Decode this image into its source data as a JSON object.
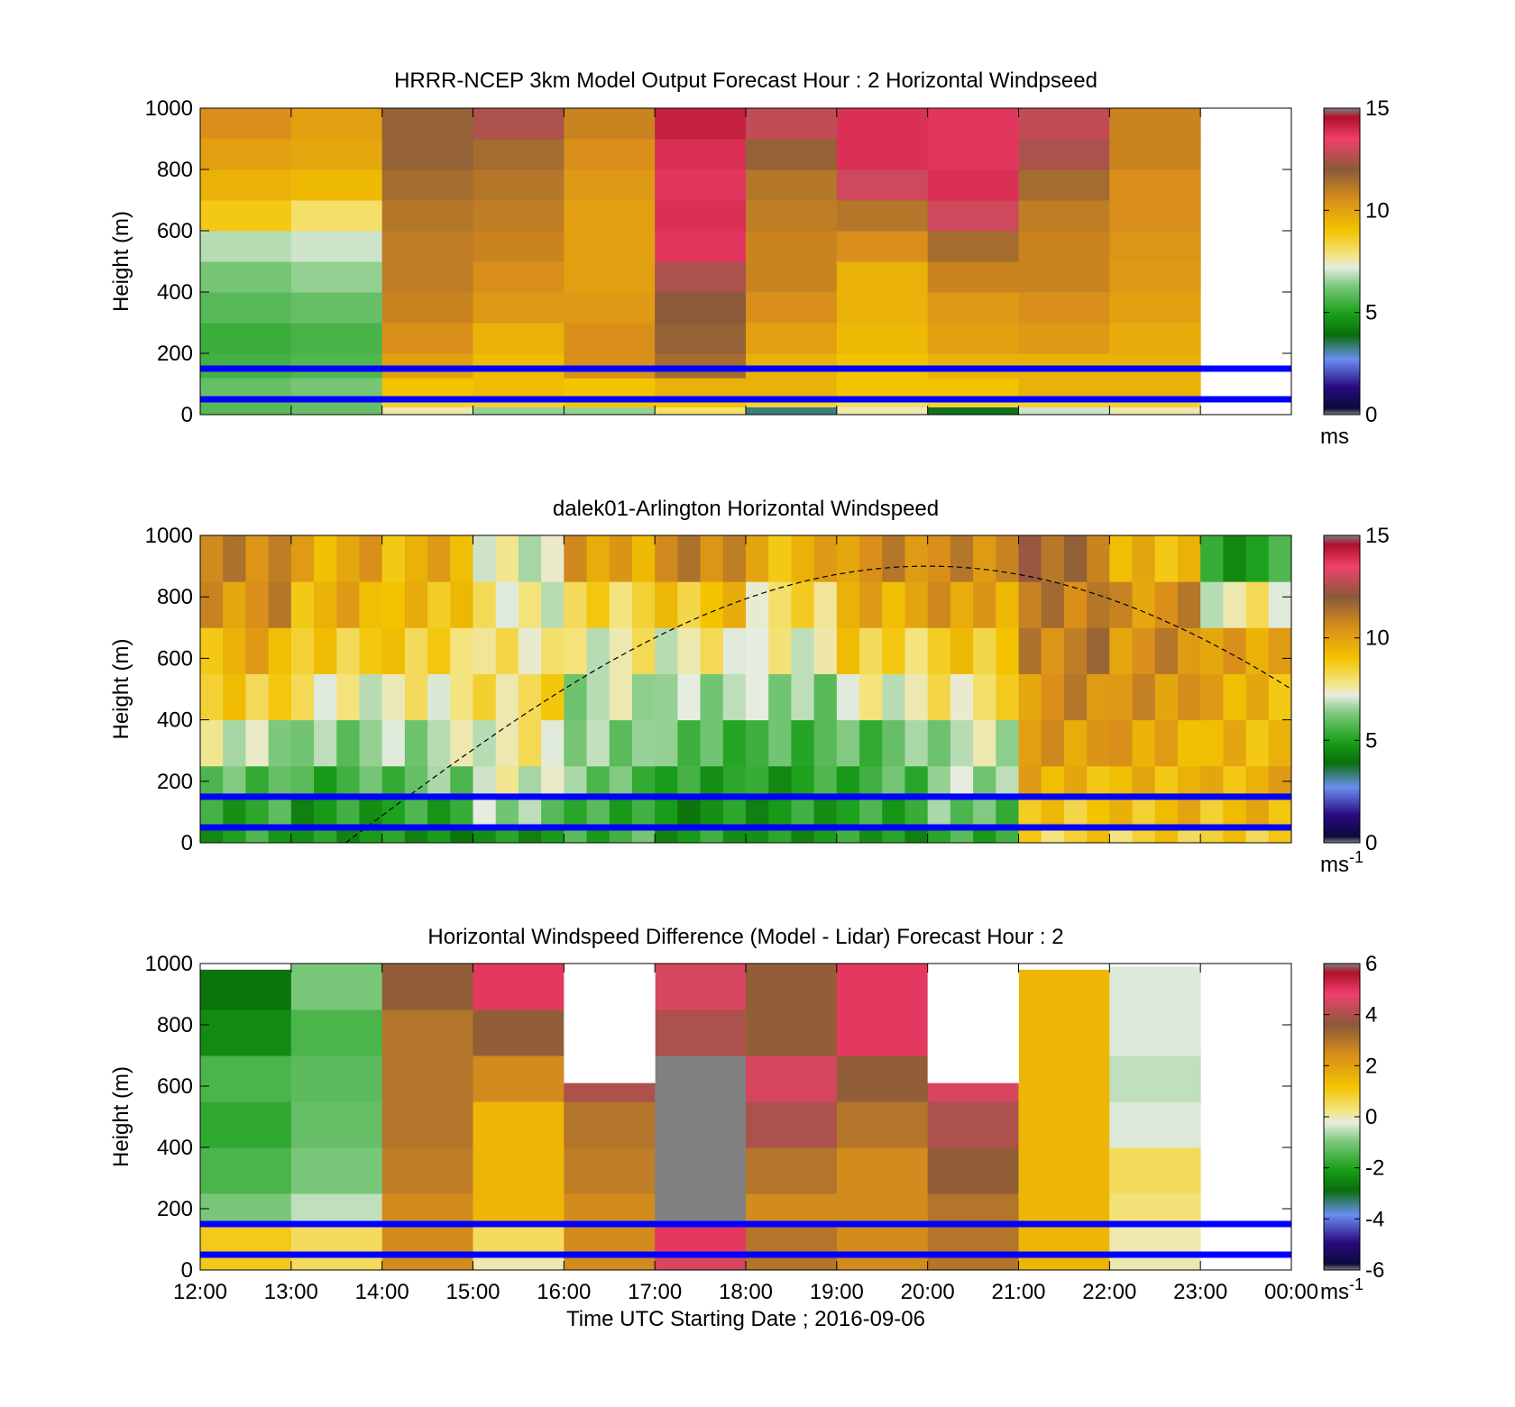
{
  "figure": {
    "xlabel": "Time UTC  Starting Date ; 2016-09-06",
    "x_ticks": [
      "12:00",
      "13:00",
      "14:00",
      "15:00",
      "16:00",
      "17:00",
      "18:00",
      "19:00",
      "20:00",
      "21:00",
      "22:00",
      "23:00",
      "00:00"
    ],
    "boundary_line_color": "#0000ff",
    "boundary_line_heights": [
      150,
      50
    ]
  },
  "chart_data": [
    {
      "type": "heatmap",
      "title": "HRRR-NCEP 3km Model Output   Forecast Hour : 2 Horizontal Windpseed",
      "ylabel": "Height (m)",
      "xlim": [
        12,
        24
      ],
      "ylim": [
        0,
        1000
      ],
      "y_ticks": [
        "0",
        "200",
        "400",
        "600",
        "800",
        "1000"
      ],
      "colorbar": {
        "ticks": [
          "0",
          "5",
          "10",
          "15"
        ],
        "range": [
          0,
          15
        ],
        "unit": "ms"
      },
      "hours": [
        12,
        13,
        14,
        15,
        16,
        17,
        18,
        19,
        20,
        21,
        22
      ],
      "heights": [
        10,
        40,
        90,
        150,
        250,
        350,
        450,
        550,
        650,
        750,
        850,
        950
      ],
      "values": [
        [
          5.8,
          6.0,
          7.5,
          6.5,
          6.5,
          8.0,
          3.0,
          7.5,
          3.5,
          7.0,
          7.5
        ],
        [
          5.8,
          6.0,
          8.5,
          8.5,
          9.0,
          9.0,
          8.5,
          8.0,
          8.5,
          8.5,
          8.5
        ],
        [
          6.0,
          6.2,
          9.0,
          9.2,
          9.0,
          9.5,
          9.5,
          9.0,
          9.0,
          9.5,
          9.5
        ],
        [
          5.5,
          5.7,
          10.0,
          9.2,
          10.5,
          11.5,
          9.5,
          9.0,
          9.5,
          9.5,
          9.5
        ],
        [
          5.4,
          5.6,
          10.5,
          9.5,
          10.5,
          11.8,
          10.0,
          9.3,
          10.0,
          10.2,
          9.7
        ],
        [
          5.8,
          6.0,
          10.8,
          10.2,
          10.2,
          12.0,
          10.5,
          9.5,
          10.2,
          10.5,
          10.0
        ],
        [
          6.2,
          6.5,
          11.0,
          10.5,
          10.0,
          12.5,
          10.8,
          9.5,
          10.8,
          10.8,
          10.2
        ],
        [
          6.8,
          7.0,
          11.0,
          10.8,
          10.0,
          13.8,
          10.8,
          10.5,
          11.5,
          10.8,
          10.3
        ],
        [
          8.8,
          8.0,
          11.2,
          11.0,
          10.0,
          14.0,
          11.0,
          11.2,
          13.0,
          11.0,
          10.5
        ],
        [
          9.5,
          9.3,
          11.5,
          11.2,
          10.2,
          13.8,
          11.2,
          13.0,
          14.0,
          11.5,
          10.5
        ],
        [
          10.0,
          9.8,
          11.8,
          11.5,
          10.5,
          14.0,
          11.8,
          14.0,
          13.8,
          12.5,
          10.8
        ],
        [
          10.5,
          10.0,
          11.8,
          12.5,
          10.8,
          14.5,
          12.8,
          14.0,
          13.8,
          12.8,
          10.8
        ]
      ]
    },
    {
      "type": "heatmap",
      "title": "dalek01-Arlington  Horizontal Windspeed",
      "ylabel": "Height (m)",
      "xlim": [
        12,
        24
      ],
      "ylim": [
        0,
        1000
      ],
      "y_ticks": [
        "0",
        "200",
        "400",
        "600",
        "800",
        "1000"
      ],
      "colorbar": {
        "ticks": [
          "0",
          "5",
          "10",
          "15"
        ],
        "range": [
          0,
          15
        ],
        "unit": "ms-1"
      },
      "hour_bins": [
        12,
        13,
        14,
        15,
        16,
        17,
        18,
        19,
        20,
        21,
        22,
        23,
        24
      ],
      "height_bins": [
        0,
        50,
        150,
        250,
        400,
        550,
        700,
        850,
        1000
      ],
      "values": [
        [
          5.0,
          4.5,
          4.5,
          4.8,
          5.5,
          4.8,
          4.5,
          4.8,
          5.5,
          8.5,
          8.5,
          8.5
        ],
        [
          5.2,
          4.8,
          5.0,
          6.5,
          5.5,
          4.5,
          4.8,
          5.0,
          6.0,
          9.0,
          9.2,
          9.2
        ],
        [
          6.0,
          5.5,
          6.0,
          7.0,
          6.0,
          5.2,
          5.0,
          5.5,
          6.5,
          9.5,
          9.5,
          9.5
        ],
        [
          7.0,
          6.5,
          6.8,
          7.5,
          6.2,
          5.8,
          5.8,
          6.0,
          6.8,
          10.0,
          9.8,
          9.5
        ],
        [
          8.5,
          7.5,
          7.8,
          8.2,
          6.8,
          6.5,
          6.5,
          7.5,
          8.0,
          10.5,
          10.2,
          9.5
        ],
        [
          9.5,
          8.5,
          8.5,
          8.0,
          7.5,
          7.5,
          7.2,
          8.5,
          9.0,
          11.0,
          10.5,
          9.8
        ],
        [
          10.5,
          9.5,
          9.0,
          7.5,
          8.5,
          9.0,
          8.0,
          9.5,
          10.0,
          11.2,
          10.5,
          7.5
        ],
        [
          11.0,
          9.8,
          9.5,
          7.0,
          10.0,
          11.0,
          9.5,
          10.5,
          10.5,
          11.5,
          9.5,
          5.0
        ]
      ],
      "solar_curve": {
        "peak_hour": 20,
        "peak_height": 900,
        "start_hour": 13.6,
        "end_hour": 24,
        "end_height": 500
      }
    },
    {
      "type": "heatmap",
      "title": "Horizontal Windspeed Difference (Model - Lidar) Forecast Hour : 2",
      "ylabel": "Height (m)",
      "xlim": [
        12,
        24
      ],
      "ylim": [
        0,
        1000
      ],
      "y_ticks": [
        "0",
        "200",
        "400",
        "600",
        "800",
        "1000"
      ],
      "colorbar": {
        "ticks": [
          "-6",
          "-4",
          "-2",
          "0",
          "2",
          "4",
          "6"
        ],
        "range": [
          -6,
          6
        ],
        "unit": "ms-1"
      },
      "hour_bins": [
        12,
        13,
        14,
        15,
        16,
        17,
        18,
        19,
        20,
        21,
        22,
        23
      ],
      "height_bins": [
        0,
        50,
        150,
        250,
        400,
        550,
        700,
        850,
        1000
      ],
      "values": [
        [
          1.0,
          0.5,
          2.5,
          0.0,
          2.5,
          4.5,
          3.0,
          2.5,
          3.0,
          1.5,
          0.0
        ],
        [
          1.0,
          0.5,
          2.5,
          0.5,
          2.5,
          5.0,
          3.0,
          2.5,
          3.0,
          1.5,
          0.0
        ],
        [
          -1.0,
          -0.5,
          2.5,
          1.5,
          2.5,
          null,
          2.5,
          2.5,
          3.0,
          1.5,
          0.3
        ],
        [
          -1.5,
          -1.0,
          2.8,
          1.5,
          2.8,
          null,
          3.0,
          2.5,
          3.5,
          1.5,
          0.5
        ],
        [
          -1.8,
          -1.2,
          3.0,
          1.5,
          3.0,
          null,
          4.0,
          3.0,
          4.0,
          1.5,
          -0.3
        ],
        [
          -1.5,
          -1.3,
          3.0,
          2.5,
          4.0,
          null,
          4.5,
          3.5,
          4.5,
          1.5,
          -0.5
        ],
        [
          -2.5,
          -1.5,
          3.0,
          3.5,
          null,
          4.0,
          3.5,
          5.0,
          null,
          1.5,
          -0.3
        ],
        [
          -3.0,
          -1.0,
          3.5,
          5.0,
          null,
          4.5,
          3.5,
          5.0,
          null,
          1.5,
          -0.3
        ]
      ],
      "top_limits": [
        980,
        1000,
        1000,
        1000,
        610,
        1000,
        1000,
        1000,
        610,
        980,
        990
      ]
    }
  ]
}
